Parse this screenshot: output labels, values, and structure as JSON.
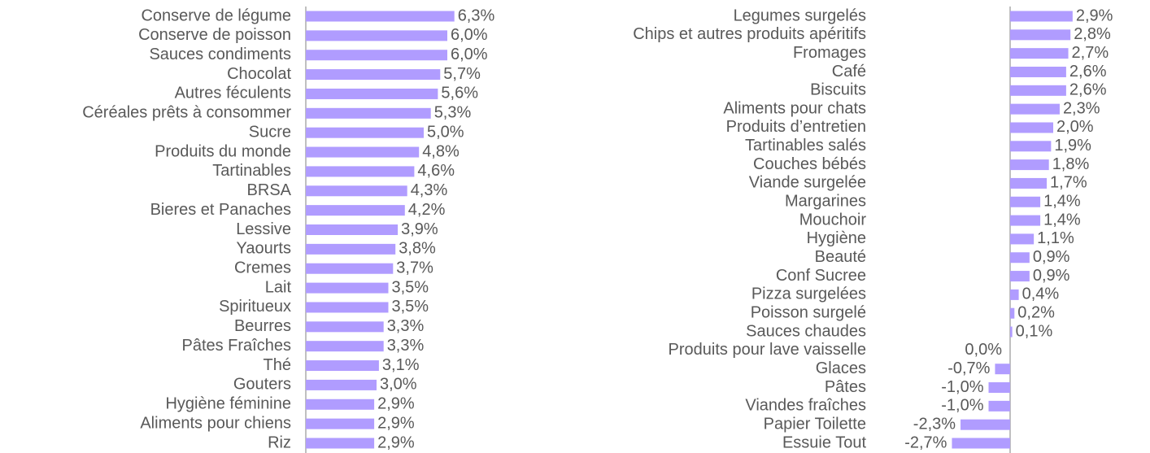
{
  "chart_data": [
    {
      "type": "barh",
      "color": "#b09cff",
      "categories": [
        "Conserve de légume",
        "Conserve de poisson",
        "Sauces condiments",
        "Chocolat",
        "Autres féculents",
        "Céréales prêts à consommer",
        "Sucre",
        "Produits du  monde",
        "Tartinables",
        "BRSA",
        "Bieres et Panaches",
        "Lessive",
        "Yaourts",
        "Cremes",
        "Lait",
        "Spiritueux",
        "Beurres",
        "Pâtes Fraîches",
        "Thé",
        "Gouters",
        "Hygiène féminine",
        "Aliments pour chiens",
        "Riz"
      ],
      "values": [
        6.3,
        6.0,
        6.0,
        5.7,
        5.6,
        5.3,
        5.0,
        4.8,
        4.6,
        4.3,
        4.2,
        3.9,
        3.8,
        3.7,
        3.5,
        3.5,
        3.3,
        3.3,
        3.1,
        3.0,
        2.9,
        2.9,
        2.9
      ],
      "value_labels": [
        "6,3%",
        "6,0%",
        "6,0%",
        "5,7%",
        "5,6%",
        "5,3%",
        "5,0%",
        "4,8%",
        "4,6%",
        "4,3%",
        "4,2%",
        "3,9%",
        "3,8%",
        "3,7%",
        "3,5%",
        "3,5%",
        "3,3%",
        "3,3%",
        "3,1%",
        "3,0%",
        "2,9%",
        "2,9%",
        "2,9%"
      ]
    },
    {
      "type": "barh",
      "color": "#b09cff",
      "categories": [
        "Legumes surgelés",
        "Chips et autres produits apéritifs",
        "Fromages",
        "Café",
        "Biscuits",
        "Aliments pour chats",
        "Produits d’entretien",
        "Tartinables salés",
        "Couches bébés",
        "Viande surgelée",
        "Margarines",
        "Mouchoir",
        "Hygiène",
        "Beauté",
        "Conf Sucree",
        "Pizza surgelées",
        "Poisson surgelé",
        "Sauces chaudes",
        "Produits pour lave vaisselle",
        "Glaces",
        "Pâtes",
        "Viandes fraîches",
        "Papier Toilette",
        "Essuie Tout"
      ],
      "values": [
        2.9,
        2.8,
        2.7,
        2.6,
        2.6,
        2.3,
        2.0,
        1.9,
        1.8,
        1.7,
        1.4,
        1.4,
        1.1,
        0.9,
        0.9,
        0.4,
        0.2,
        0.1,
        0.0,
        -0.7,
        -1.0,
        -1.0,
        -2.3,
        -2.7
      ],
      "value_labels": [
        "2,9%",
        "2,8%",
        "2,7%",
        "2,6%",
        "2,6%",
        "2,3%",
        "2,0%",
        "1,9%",
        "1,8%",
        "1,7%",
        "1,4%",
        "1,4%",
        "1,1%",
        "0,9%",
        "0,9%",
        "0,4%",
        "0,2%",
        "0,1%",
        "0,0%",
        "-0,7%",
        "-1,0%",
        "-1,0%",
        "-2,3%",
        "-2,7%"
      ]
    }
  ]
}
